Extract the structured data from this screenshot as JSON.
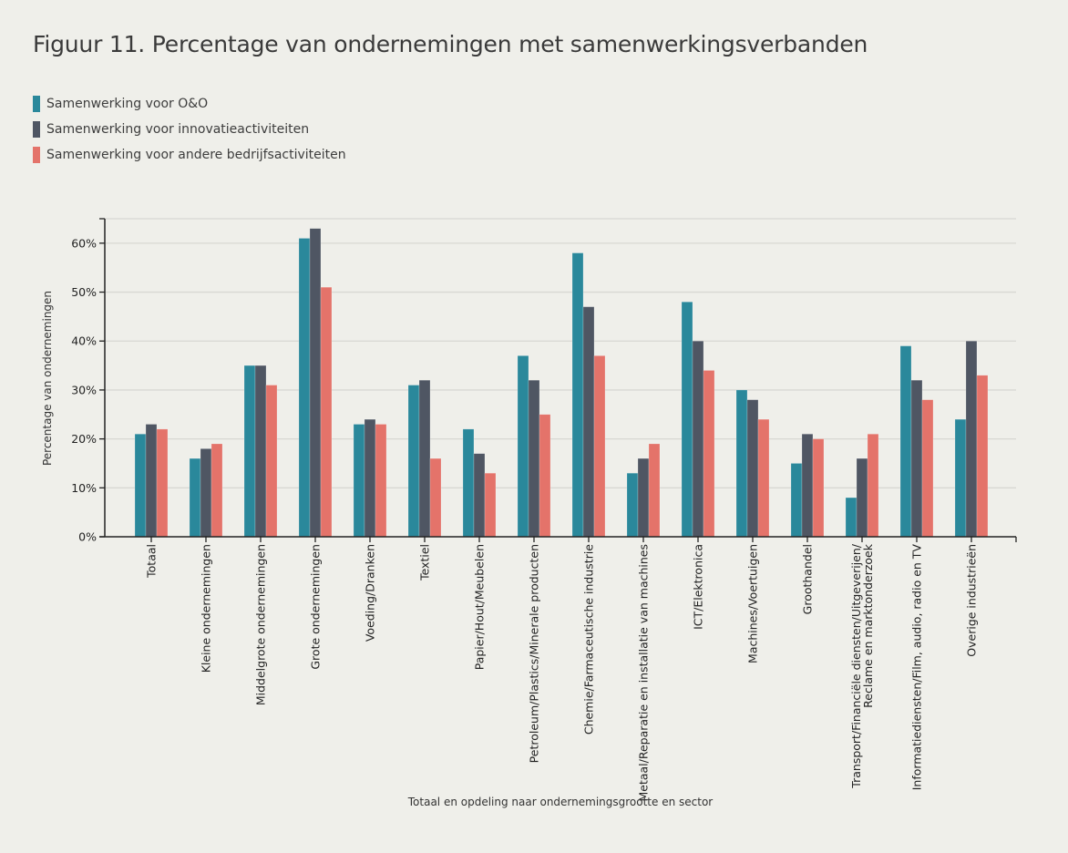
{
  "title": "Figuur 11. Percentage van ondernemingen met samenwerkingsverbanden",
  "legend": [
    {
      "label": "Samenwerking voor O&O",
      "color": "#2a889b"
    },
    {
      "label": "Samenwerking voor innovatieactiviteiten",
      "color": "#4f5663"
    },
    {
      "label": "Samenwerking voor andere bedrijfsactiviteiten",
      "color": "#e4736a"
    }
  ],
  "chart_data": {
    "type": "bar",
    "title": "Figuur 11. Percentage van ondernemingen met samenwerkingsverbanden",
    "xlabel": "Totaal en opdeling naar ondernemingsgrootte en sector",
    "ylabel": "Percentage van ondernemingen",
    "ylim": [
      0,
      65
    ],
    "yticks": [
      0,
      10,
      20,
      30,
      40,
      50,
      60
    ],
    "ytick_labels": [
      "0%",
      "10%",
      "20%",
      "30%",
      "40%",
      "50%",
      "60%"
    ],
    "grid": true,
    "legend_position": "top-left",
    "categories": [
      "Totaal",
      "Kleine ondernemingen",
      "Middelgrote ondernemingen",
      "Grote ondernemingen",
      "Voeding/Dranken",
      "Textiel",
      "Papier/Hout/Meubelen",
      "Petroleum/Plastics/Minerale producten",
      "Chemie/Farmaceutische industrie",
      "Metaal/Reparatie en installatie van machines",
      "ICT/Elektronica",
      "Machines/Voertuigen",
      "Groothandel",
      "Transport/Financiële diensten/Uitgeverijen/\nReclame en marktonderzoek",
      "Informatiediensten/Film, audio, radio en TV",
      "Overige industrieën"
    ],
    "series": [
      {
        "name": "Samenwerking voor O&O",
        "color": "#2a889b",
        "values": [
          21,
          16,
          35,
          61,
          23,
          31,
          22,
          37,
          58,
          13,
          48,
          30,
          15,
          8,
          39,
          24
        ]
      },
      {
        "name": "Samenwerking voor innovatieactiviteiten",
        "color": "#4f5663",
        "values": [
          23,
          18,
          35,
          63,
          24,
          32,
          17,
          32,
          47,
          16,
          40,
          28,
          21,
          16,
          32,
          40
        ]
      },
      {
        "name": "Samenwerking voor andere bedrijfsactiviteiten",
        "color": "#e4736a",
        "values": [
          22,
          19,
          31,
          51,
          23,
          16,
          13,
          25,
          37,
          19,
          34,
          24,
          20,
          21,
          28,
          33
        ]
      }
    ]
  }
}
